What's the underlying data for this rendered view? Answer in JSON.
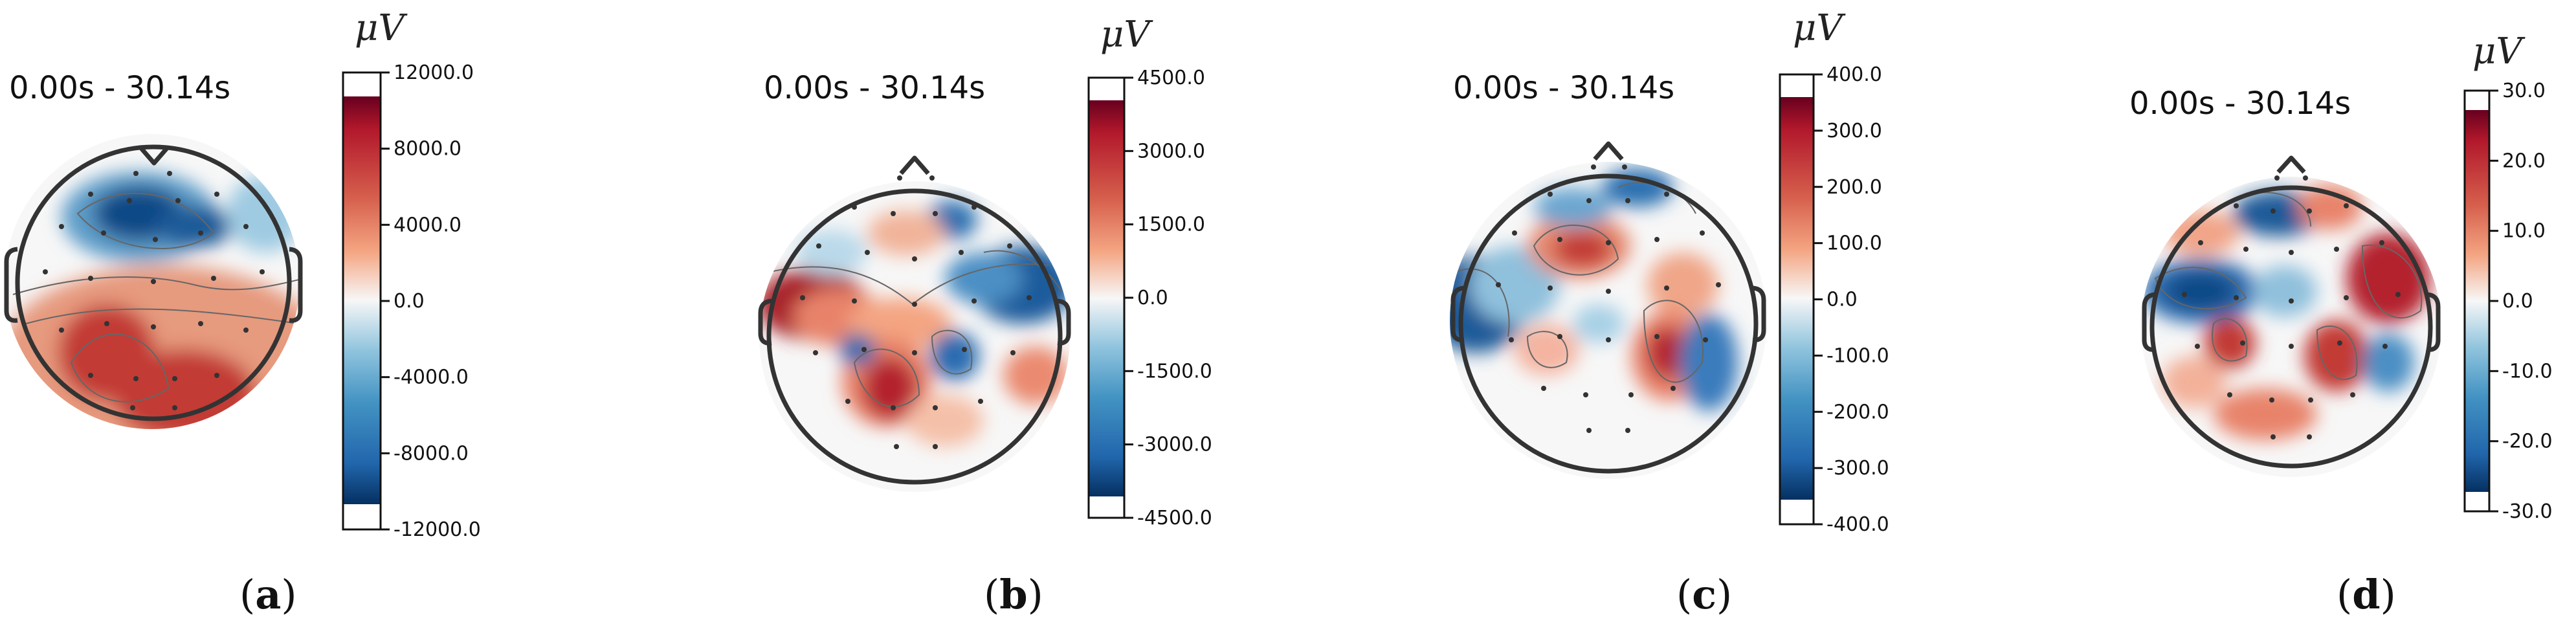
{
  "colors": {
    "dark_blue": "#053061",
    "blue": "#2166ac",
    "light_blue": "#92c5de",
    "white": "#f7f7f7",
    "light_red": "#f4a582",
    "red": "#d6604d",
    "dark_red": "#67001f",
    "outline": "#333333"
  },
  "panels": [
    {
      "id": "a",
      "time_label": "0.00s - 30.14s",
      "unit_label": "μV",
      "ticks": [
        "12000.0",
        "8000.0",
        "4000.0",
        "0.0",
        "-4000.0",
        "-8000.0",
        "-12000.0"
      ],
      "caption_open": "(",
      "caption_letter": "a",
      "caption_close": ")"
    },
    {
      "id": "b",
      "time_label": "0.00s - 30.14s",
      "unit_label": "μV",
      "ticks": [
        "4500.0",
        "3000.0",
        "1500.0",
        "0.0",
        "-1500.0",
        "-3000.0",
        "-4500.0"
      ],
      "caption_open": "(",
      "caption_letter": "b",
      "caption_close": ")"
    },
    {
      "id": "c",
      "time_label": "0.00s - 30.14s",
      "unit_label": "μV",
      "ticks": [
        "400.0",
        "300.0",
        "200.0",
        "100.0",
        "0.0",
        "-100.0",
        "-200.0",
        "-300.0",
        "-400.0"
      ],
      "caption_open": "(",
      "caption_letter": "c",
      "caption_close": ")"
    },
    {
      "id": "d",
      "time_label": "0.00s - 30.14s",
      "unit_label": "μV",
      "ticks": [
        "30.0",
        "20.0",
        "10.0",
        "0.0",
        "-10.0",
        "-20.0",
        "-30.0"
      ],
      "caption_open": "(",
      "caption_letter": "d",
      "caption_close": ")"
    }
  ]
}
